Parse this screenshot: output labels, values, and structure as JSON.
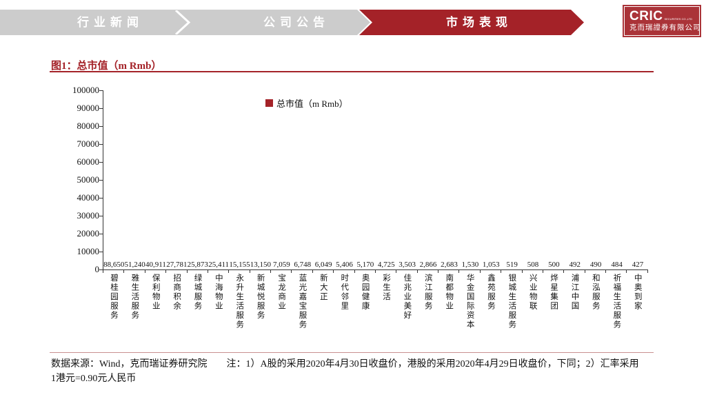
{
  "header": {
    "tabs": [
      {
        "label": "行业新闻",
        "active": false
      },
      {
        "label": "公司公告",
        "active": false
      },
      {
        "label": "市场表现",
        "active": true
      }
    ],
    "logo": {
      "brand": "CRIC",
      "sub": "SECURITIES CO.,LTD",
      "company": "克而瑞證券有限公司"
    }
  },
  "figure": {
    "title": "图1：总市值（m Rmb）"
  },
  "chart_data": {
    "type": "bar",
    "title": "总市值（m Rmb）",
    "legend_label": "总市值（m Rmb）",
    "legend_position": "top-left-inside",
    "grid": false,
    "bar_color": "#a42228",
    "ylim": [
      0,
      100000
    ],
    "ytick_interval": 10000,
    "categories": [
      "碧桂园服务",
      "雅生活服务",
      "保利物业",
      "招商积余",
      "绿城服务",
      "中海物业",
      "永升生活服务",
      "新城悦服务",
      "宝龙商业",
      "蓝光嘉宝服务",
      "新大正",
      "时代邻里",
      "奥园健康",
      "彩生活",
      "佳兆业美好",
      "滨江服务",
      "南都物业",
      "华金国际资本",
      "鑫苑服务",
      "银城生活服务",
      "兴业物联",
      "烨星集团",
      "浦江中国",
      "和泓服务",
      "祈福生活服务",
      "中奥到家"
    ],
    "values": [
      88650,
      51240,
      40911,
      27781,
      25873,
      25411,
      15155,
      13150,
      7059,
      6748,
      6049,
      5406,
      5170,
      4725,
      3503,
      2866,
      2683,
      1530,
      1053,
      519,
      508,
      500,
      492,
      490,
      484,
      427
    ]
  },
  "footer": {
    "note": "数据来源：Wind，克而瑞证券研究院　　注：1）A股的采用2020年4月30日收盘价，港股的采用2020年4月29日收盘价，下同；2）汇率采用1港元=0.90元人民币"
  },
  "colors": {
    "accent_red": "#a42228",
    "tab_inactive_gray": "#cccccc",
    "logo_red": "#aa3338",
    "footer_rule": "#c9908f"
  }
}
